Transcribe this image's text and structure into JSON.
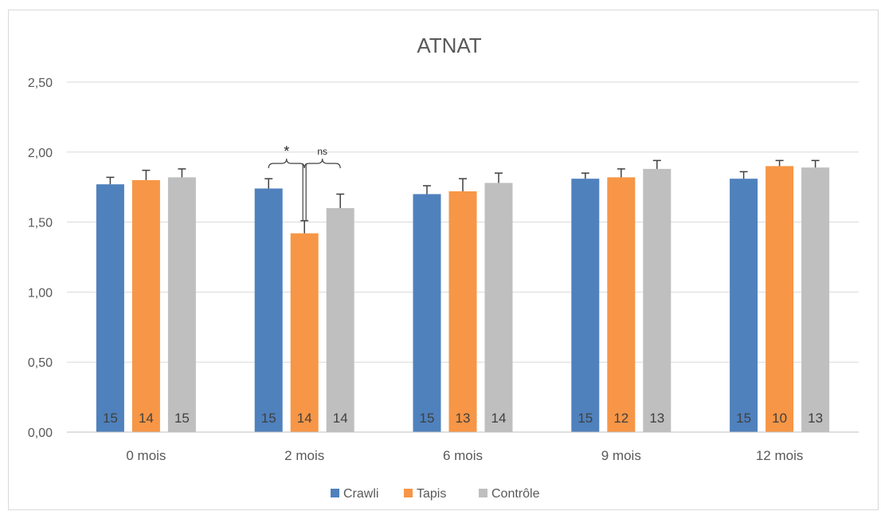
{
  "chart_data": {
    "type": "bar",
    "title": "ATNAT",
    "xlabel": "",
    "ylabel": "",
    "ylim": [
      0,
      2.5
    ],
    "y_ticks": [
      "0,00",
      "0,50",
      "1,00",
      "1,50",
      "2,00",
      "2,50"
    ],
    "y_tick_values": [
      0,
      0.5,
      1.0,
      1.5,
      2.0,
      2.5
    ],
    "categories": [
      "0 mois",
      "2 mois",
      "6 mois",
      "9 mois",
      "12 mois"
    ],
    "series": [
      {
        "name": "Crawli",
        "color": "#4f81bd",
        "values": [
          1.77,
          1.74,
          1.7,
          1.81,
          1.81
        ],
        "errors": [
          0.05,
          0.07,
          0.06,
          0.04,
          0.05
        ],
        "n": [
          "15",
          "15",
          "15",
          "15",
          "15"
        ]
      },
      {
        "name": "Tapis",
        "color": "#f79646",
        "values": [
          1.8,
          1.42,
          1.72,
          1.82,
          1.9
        ],
        "errors": [
          0.07,
          0.09,
          0.09,
          0.06,
          0.04
        ],
        "n": [
          "14",
          "14",
          "13",
          "12",
          "10"
        ]
      },
      {
        "name": "Contrôle",
        "color": "#bfbfbf",
        "values": [
          1.82,
          1.6,
          1.78,
          1.88,
          1.89
        ],
        "errors": [
          0.06,
          0.1,
          0.07,
          0.06,
          0.05
        ],
        "n": [
          "15",
          "14",
          "14",
          "13",
          "13"
        ]
      }
    ],
    "annotations": [
      {
        "text": "*",
        "category": "2 mois",
        "from_series": "Crawli",
        "to_series": "Tapis"
      },
      {
        "text": "ns",
        "category": "2 mois",
        "from_series": "Tapis",
        "to_series": "Contrôle"
      }
    ],
    "legend_position": "bottom",
    "grid": true
  }
}
